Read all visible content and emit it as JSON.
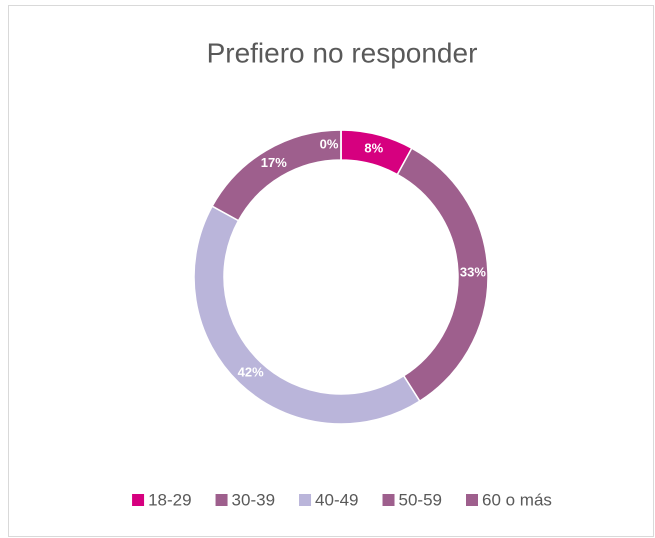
{
  "chart_data": {
    "type": "donut",
    "title": "Prefiero no responder",
    "categories": [
      "18-29",
      "30-39",
      "40-49",
      "50-59",
      "60 o más"
    ],
    "values": [
      8,
      33,
      42,
      17,
      0
    ],
    "value_labels": [
      "8%",
      "33%",
      "42%",
      "17%",
      "0%"
    ],
    "colors": [
      "#d6007f",
      "#9e5f8d",
      "#bab5da",
      "#9e5f8d",
      "#9e5f8d"
    ],
    "legend": "bottom"
  }
}
